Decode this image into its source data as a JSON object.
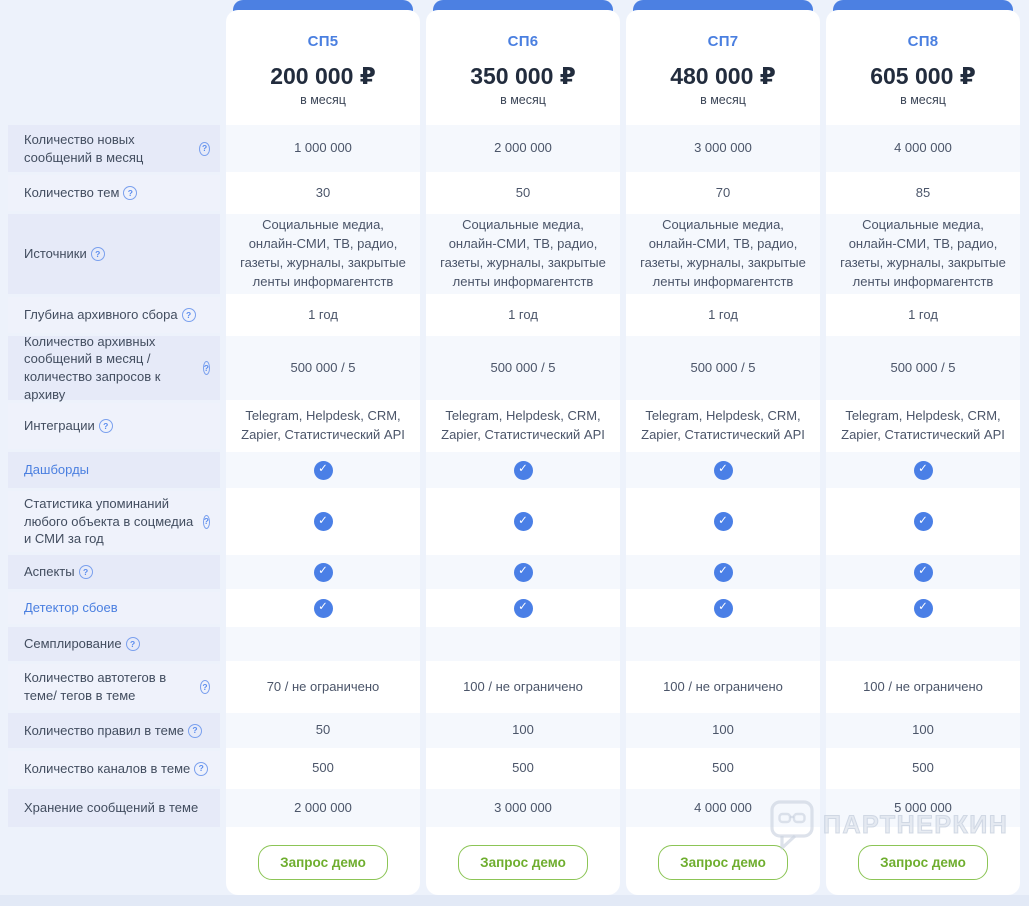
{
  "plans": [
    {
      "key": "sp5",
      "name": "СП5",
      "price": "200 000 ₽",
      "period": "в месяц"
    },
    {
      "key": "sp6",
      "name": "СП6",
      "price": "350 000 ₽",
      "period": "в месяц"
    },
    {
      "key": "sp7",
      "name": "СП7",
      "price": "480 000 ₽",
      "period": "в месяц"
    },
    {
      "key": "sp8",
      "name": "СП8",
      "price": "605 000 ₽",
      "period": "в месяц"
    }
  ],
  "demo_button": {
    "label": "Запрос демо"
  },
  "watermark": {
    "text": "ПАРТНЕРКИН",
    "icon": "partnerkin-bubble-glasses-icon"
  },
  "icons": {
    "help": "?",
    "check": "✓"
  },
  "colors": {
    "accent_blue": "#4c80e2",
    "plan_name_blue": "#4a7fe0",
    "link_blue": "#4a7fe0",
    "check_blue": "#4a7fe6",
    "button_green_text": "#6fae2f",
    "button_green_border": "#8cc556",
    "page_bg": "#edf2fb",
    "row_label_odd": "#e6eaf8",
    "row_label_even": "#eff2fb",
    "row_value_odd": "#f5f8fd",
    "price_text": "#222c3d"
  },
  "table": {
    "rows": [
      {
        "key": "new-messages-per-month",
        "label": "Количество новых сообщений в месяц",
        "help": true,
        "link": false,
        "type": "text",
        "values": [
          "1 000 000",
          "2 000 000",
          "3 000 000",
          "4 000 000"
        ]
      },
      {
        "key": "topics-count",
        "label": "Количество тем",
        "help": true,
        "link": false,
        "type": "text",
        "values": [
          "30",
          "50",
          "70",
          "85"
        ]
      },
      {
        "key": "sources",
        "label": "Источники",
        "help": true,
        "link": false,
        "type": "text",
        "values": [
          "Социальные медиа, онлайн-СМИ, ТВ, радио, газеты, журналы, закрытые ленты информагентств",
          "Социальные медиа, онлайн-СМИ, ТВ, радио, газеты, журналы, закрытые ленты информагентств",
          "Социальные медиа, онлайн-СМИ, ТВ, радио, газеты, журналы, закрытые ленты информагентств",
          "Социальные медиа, онлайн-СМИ, ТВ, радио, газеты, журналы, закрытые ленты информагентств"
        ]
      },
      {
        "key": "archive-depth",
        "label": "Глубина архивного сбора",
        "help": true,
        "link": false,
        "type": "text",
        "values": [
          "1 год",
          "1 год",
          "1 год",
          "1 год"
        ]
      },
      {
        "key": "archive-messages-and-requests",
        "label": "Количество архивных сообщений в месяц / количество запросов к архиву",
        "help": true,
        "link": false,
        "type": "text",
        "values": [
          "500 000 / 5",
          "500 000 / 5",
          "500 000 / 5",
          "500 000 / 5"
        ]
      },
      {
        "key": "integrations",
        "label": "Интеграции",
        "help": true,
        "link": false,
        "type": "text",
        "values": [
          "Telegram, Helpdesk, CRM, Zapier, Статистический API",
          "Telegram, Helpdesk, CRM, Zapier, Статистический API",
          "Telegram, Helpdesk, CRM, Zapier, Статистический API",
          "Telegram, Helpdesk, CRM, Zapier, Статистический API"
        ]
      },
      {
        "key": "dashboards",
        "label": "Дашборды",
        "help": false,
        "link": true,
        "type": "check",
        "values": [
          true,
          true,
          true,
          true
        ]
      },
      {
        "key": "mention-stats",
        "label": "Статистика упоминаний любого объекта в соцмедиа и СМИ за год",
        "help": true,
        "link": false,
        "type": "check",
        "values": [
          true,
          true,
          true,
          true
        ]
      },
      {
        "key": "aspects",
        "label": "Аспекты",
        "help": true,
        "link": false,
        "type": "check",
        "values": [
          true,
          true,
          true,
          true
        ]
      },
      {
        "key": "failure-detector",
        "label": "Детектор сбоев",
        "help": false,
        "link": true,
        "type": "check",
        "values": [
          true,
          true,
          true,
          true
        ]
      },
      {
        "key": "sampling",
        "label": "Семплирование",
        "help": true,
        "link": false,
        "type": "empty",
        "values": [
          "",
          "",
          "",
          ""
        ]
      },
      {
        "key": "autotags-per-topic",
        "label": "Количество автотегов в теме/ тегов в теме",
        "help": true,
        "link": false,
        "type": "text",
        "values": [
          "70 / не ограничено",
          "100 / не ограничено",
          "100 / не ограничено",
          "100 / не ограничено"
        ]
      },
      {
        "key": "rules-per-topic",
        "label": "Количество правил в теме",
        "help": true,
        "link": false,
        "type": "text",
        "values": [
          "50",
          "100",
          "100",
          "100"
        ]
      },
      {
        "key": "channels-per-topic",
        "label": "Количество каналов в теме",
        "help": true,
        "link": false,
        "type": "text",
        "values": [
          "500",
          "500",
          "500",
          "500"
        ]
      },
      {
        "key": "message-storage-per-topic",
        "label": "Хранение сообщений в теме",
        "help": false,
        "link": false,
        "type": "text",
        "values": [
          "2 000 000",
          "3 000 000",
          "4 000 000",
          "5 000 000"
        ]
      }
    ]
  }
}
